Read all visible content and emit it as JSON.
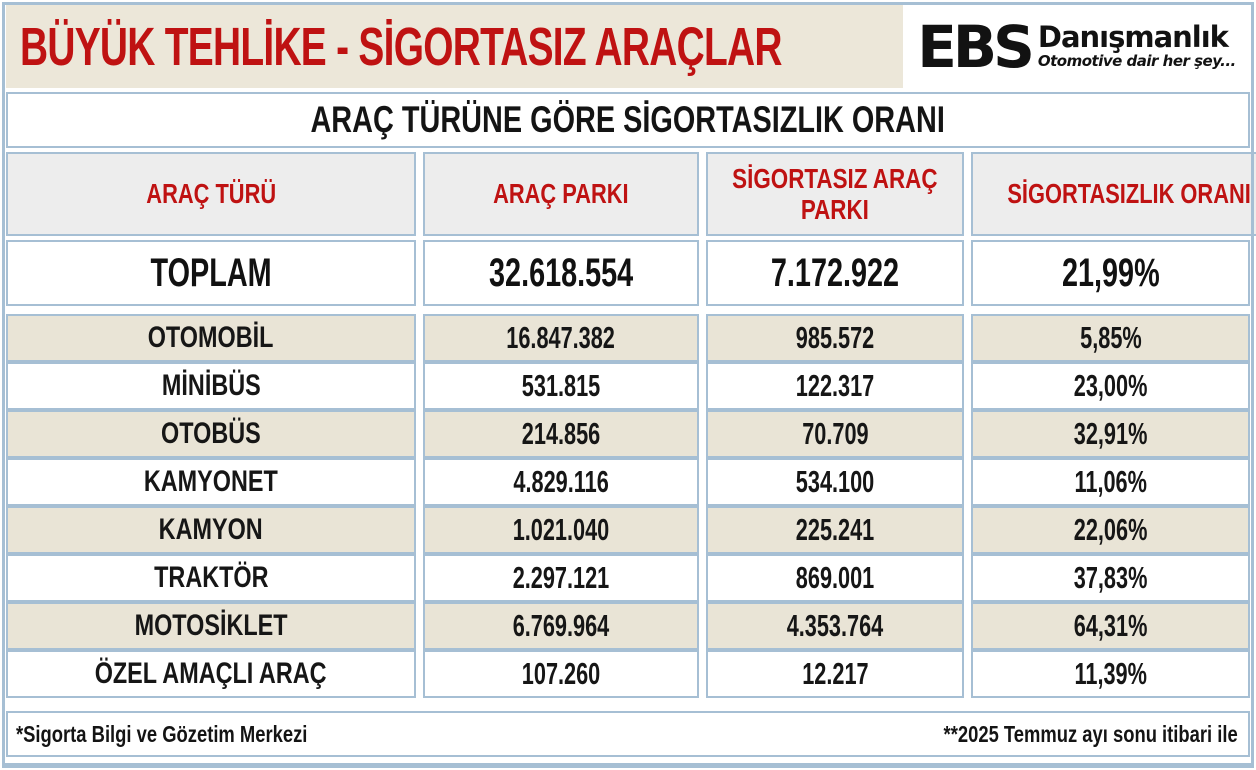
{
  "page_title": "BÜYÜK TEHLİKE - SİGORTASIZ ARAÇLAR",
  "logo": {
    "abbr": "EBS",
    "name": "Danışmanlık",
    "tagline": "Otomotive dair her şey..."
  },
  "chart_data": {
    "type": "table",
    "title": "ARAÇ TÜRÜNE GÖRE SİGORTASIZLIK ORANI",
    "columns": [
      "ARAÇ TÜRÜ",
      "ARAÇ PARKI",
      "SİGORTASIZ ARAÇ PARKI",
      "SİGORTASIZLIK ORANI"
    ],
    "total": {
      "label": "TOPLAM",
      "park": "32.618.554",
      "uninsured": "7.172.922",
      "rate": "21,99%"
    },
    "rows": [
      {
        "label": "OTOMOBİL",
        "park": "16.847.382",
        "uninsured": "985.572",
        "rate": "5,85%"
      },
      {
        "label": "MİNİBÜS",
        "park": "531.815",
        "uninsured": "122.317",
        "rate": "23,00%"
      },
      {
        "label": "OTOBÜS",
        "park": "214.856",
        "uninsured": "70.709",
        "rate": "32,91%"
      },
      {
        "label": "KAMYONET",
        "park": "4.829.116",
        "uninsured": "534.100",
        "rate": "11,06%"
      },
      {
        "label": "KAMYON",
        "park": "1.021.040",
        "uninsured": "225.241",
        "rate": "22,06%"
      },
      {
        "label": "TRAKTÖR",
        "park": "2.297.121",
        "uninsured": "869.001",
        "rate": "37,83%"
      },
      {
        "label": "MOTOSİKLET",
        "park": "6.769.964",
        "uninsured": "4.353.764",
        "rate": "64,31%"
      },
      {
        "label": "ÖZEL AMAÇLI ARAÇ",
        "park": "107.260",
        "uninsured": "12.217",
        "rate": "11,39%"
      }
    ],
    "footnote_left": "*Sigorta Bilgi ve Gözetim Merkezi",
    "footnote_right": "**2025 Temmuz ayı sonu itibari ile"
  },
  "colors": {
    "accent_red": "#bf1212",
    "header_beige": "#ece7d9",
    "row_beige": "#e9e4d6",
    "header_gray": "#ededed",
    "border_blue": "#a6bfd4"
  }
}
